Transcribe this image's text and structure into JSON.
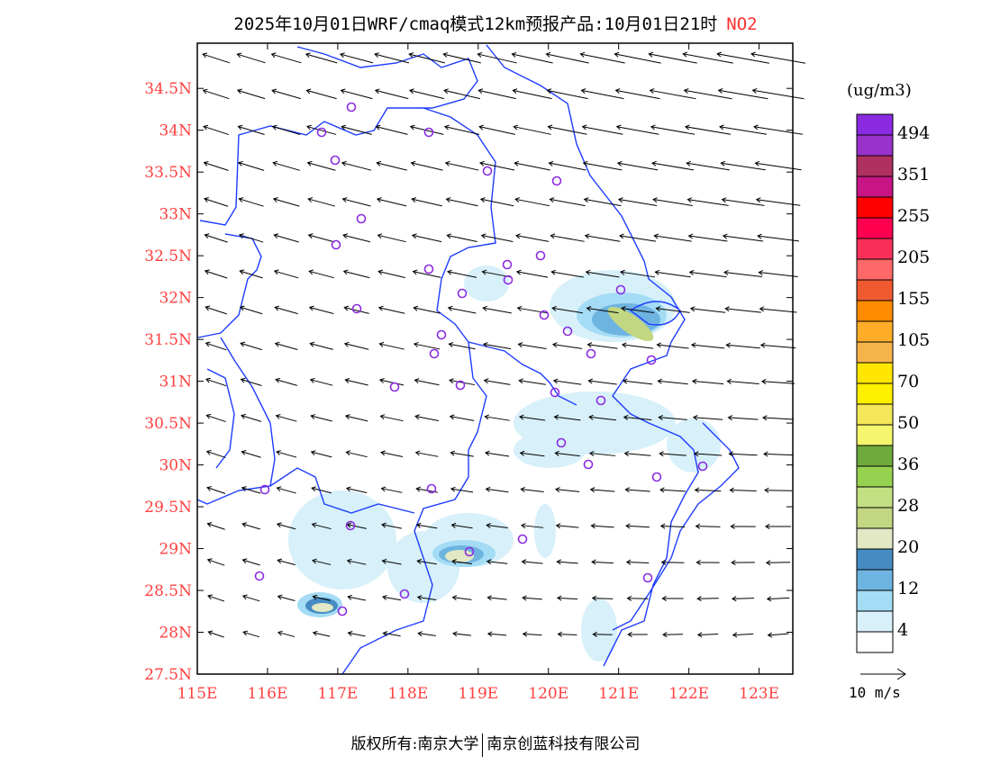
{
  "title": {
    "main": "2025年10月01日WRF/cmaq模式12km预报产品:10月01日21时",
    "species": "NO2"
  },
  "axes": {
    "lat_labels": [
      "34.5N",
      "34N",
      "33.5N",
      "33N",
      "32.5N",
      "32N",
      "31.5N",
      "31N",
      "30.5N",
      "30N",
      "29.5N",
      "29N",
      "28.5N",
      "28N",
      "27.5N"
    ],
    "lat_values": [
      34.5,
      34,
      33.5,
      33,
      32.5,
      32,
      31.5,
      31,
      30.5,
      30,
      29.5,
      29,
      28.5,
      28,
      27.5
    ],
    "lon_labels": [
      "115E",
      "116E",
      "117E",
      "118E",
      "119E",
      "120E",
      "121E",
      "122E",
      "123E"
    ],
    "lon_values": [
      115,
      116,
      117,
      118,
      119,
      120,
      121,
      122,
      123
    ],
    "lon_range": [
      115,
      123.48
    ],
    "lat_range": [
      27.5,
      35.04
    ]
  },
  "colorbar": {
    "unit": "(ug/m3)",
    "labels": [
      "494",
      "351",
      "255",
      "205",
      "155",
      "105",
      "70",
      "50",
      "36",
      "28",
      "20",
      "12",
      "4"
    ],
    "colors": [
      "#8a2be2",
      "#9932cc",
      "#b03060",
      "#c71585",
      "#ff0000",
      "#ff0050",
      "#f83058",
      "#ff6868",
      "#f05a30",
      "#ff8c00",
      "#ffad28",
      "#f5b44b",
      "#ffe600",
      "#fff000",
      "#f5e65a",
      "#f5f56e",
      "#6eaa3c",
      "#96d250",
      "#c3e182",
      "#c3d782",
      "#e1e8c3",
      "#468cc3",
      "#6eb4e1",
      "#a5dcf5",
      "#d7f0fa",
      "#ffffff"
    ]
  },
  "wind_scale": {
    "label": "10 m/s"
  },
  "footer": {
    "left": "版权所有:南京大学",
    "right": "南京创蓝科技有限公司"
  },
  "colors": {
    "boundary": "#1e3cff",
    "station": "#8a2be2",
    "label": "#ff4040"
  }
}
